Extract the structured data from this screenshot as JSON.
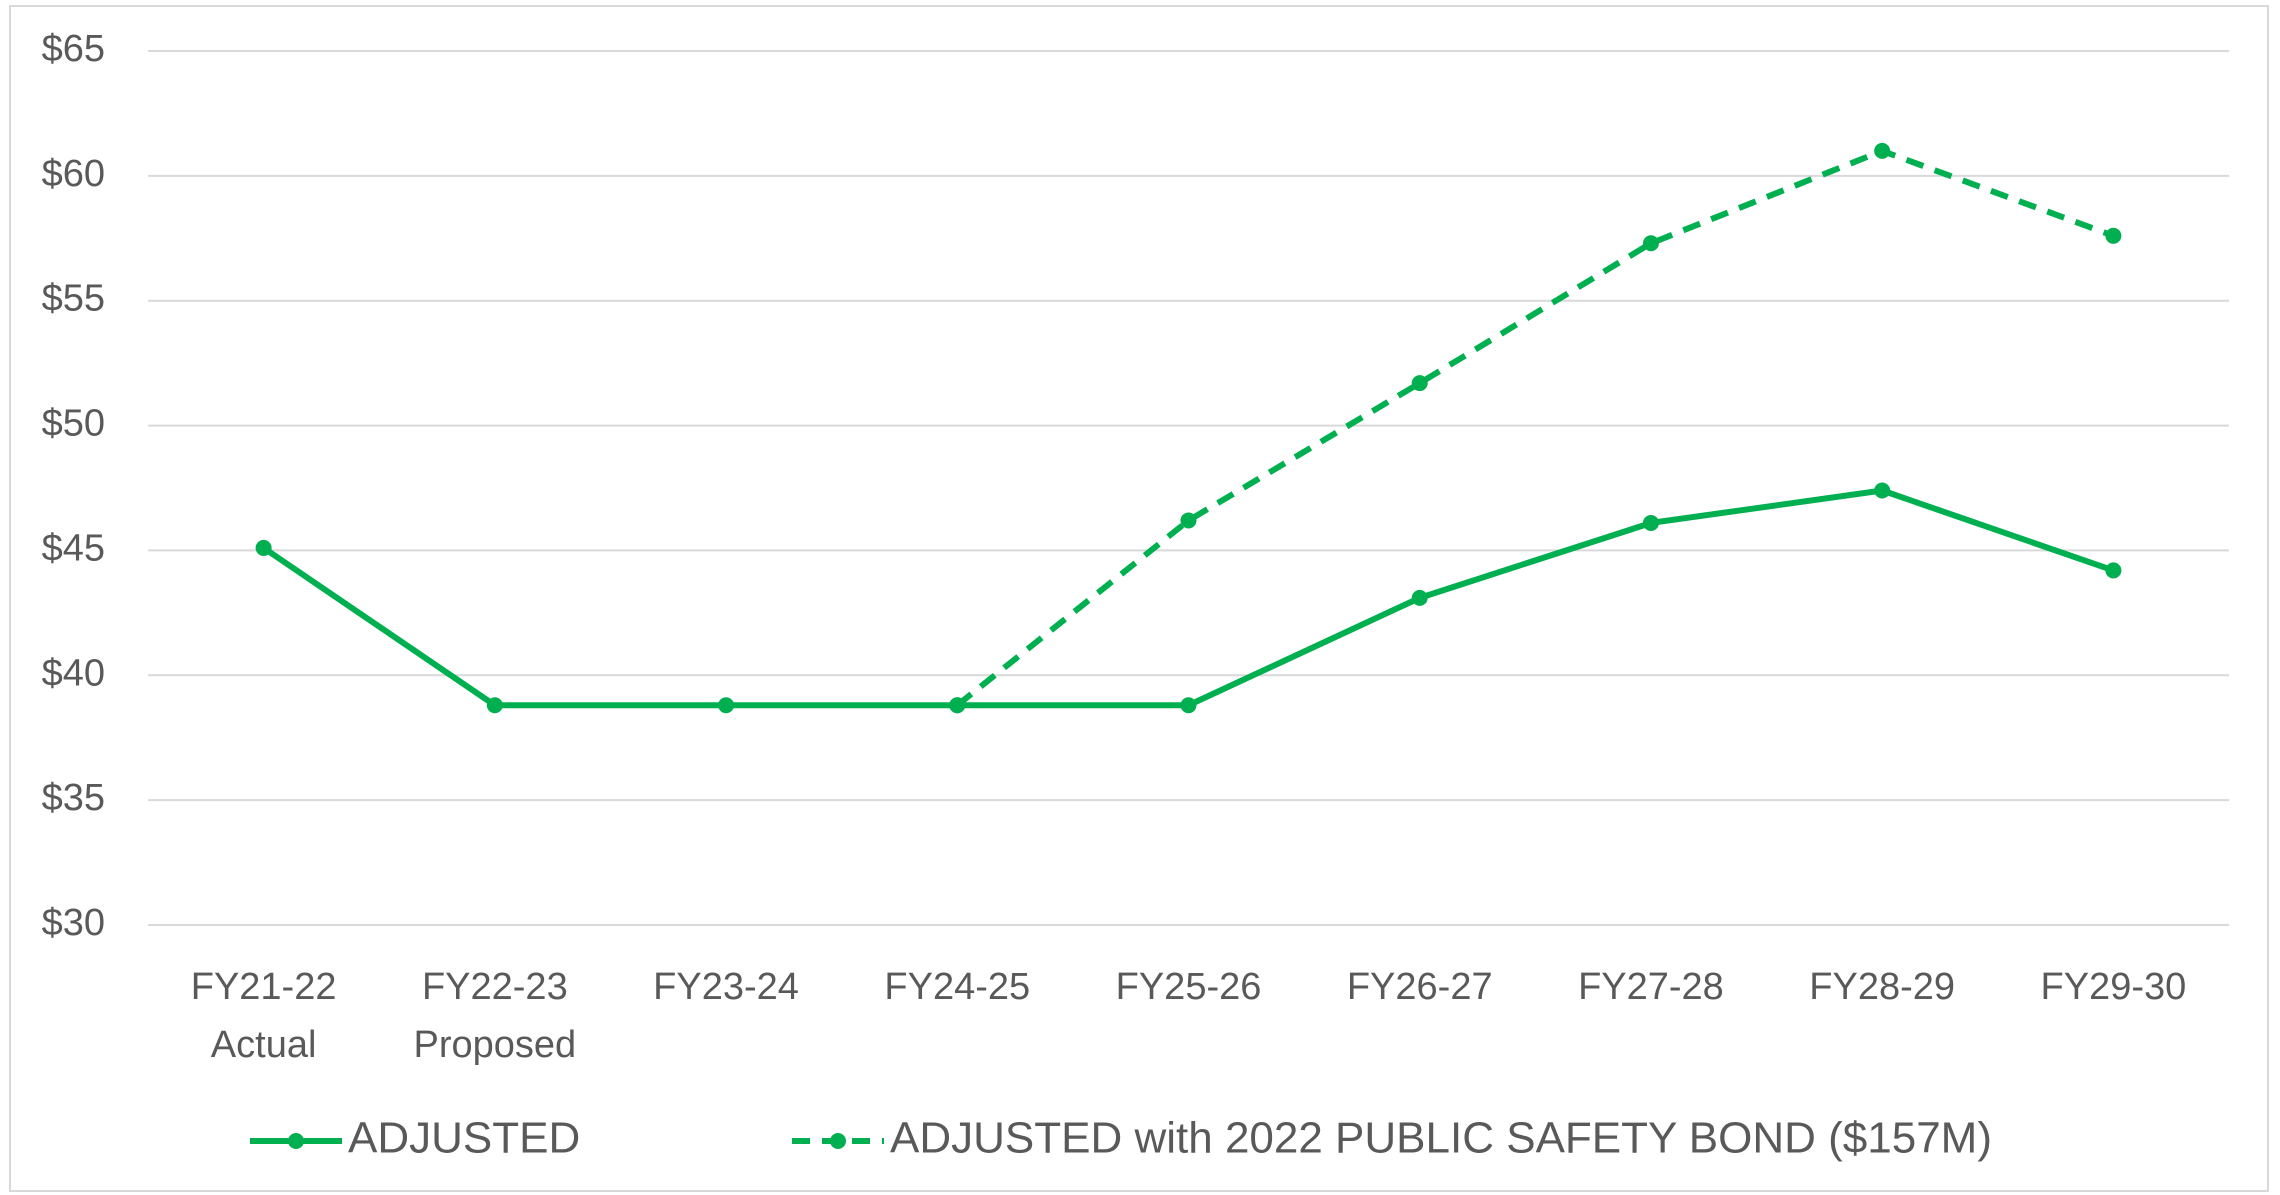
{
  "chart_data": {
    "type": "line",
    "categories": [
      "FY21-22\nActual",
      "FY22-23\nProposed",
      "FY23-24",
      "FY24-25",
      "FY25-26",
      "FY26-27",
      "FY27-28",
      "FY28-29",
      "FY29-30"
    ],
    "series": [
      {
        "name": "ADJUSTED",
        "color": "#00b050",
        "dash": false,
        "values": [
          45.1,
          38.8,
          38.8,
          38.8,
          38.8,
          43.1,
          46.1,
          47.4,
          44.2
        ]
      },
      {
        "name": "ADJUSTED with 2022 PUBLIC SAFETY BOND ($157M)",
        "color": "#00b050",
        "dash": true,
        "values": [
          null,
          null,
          null,
          38.8,
          46.2,
          51.7,
          57.3,
          61.0,
          57.6
        ]
      }
    ],
    "ylim": [
      30,
      65
    ],
    "yticks": [
      {
        "value": 30,
        "label": "$30"
      },
      {
        "value": 35,
        "label": "$35"
      },
      {
        "value": 40,
        "label": "$40"
      },
      {
        "value": 45,
        "label": "$45"
      },
      {
        "value": 50,
        "label": "$50"
      },
      {
        "value": 55,
        "label": "$55"
      },
      {
        "value": 60,
        "label": "$60"
      },
      {
        "value": 65,
        "label": "$65"
      }
    ],
    "grid": true,
    "legend": "bottom"
  }
}
